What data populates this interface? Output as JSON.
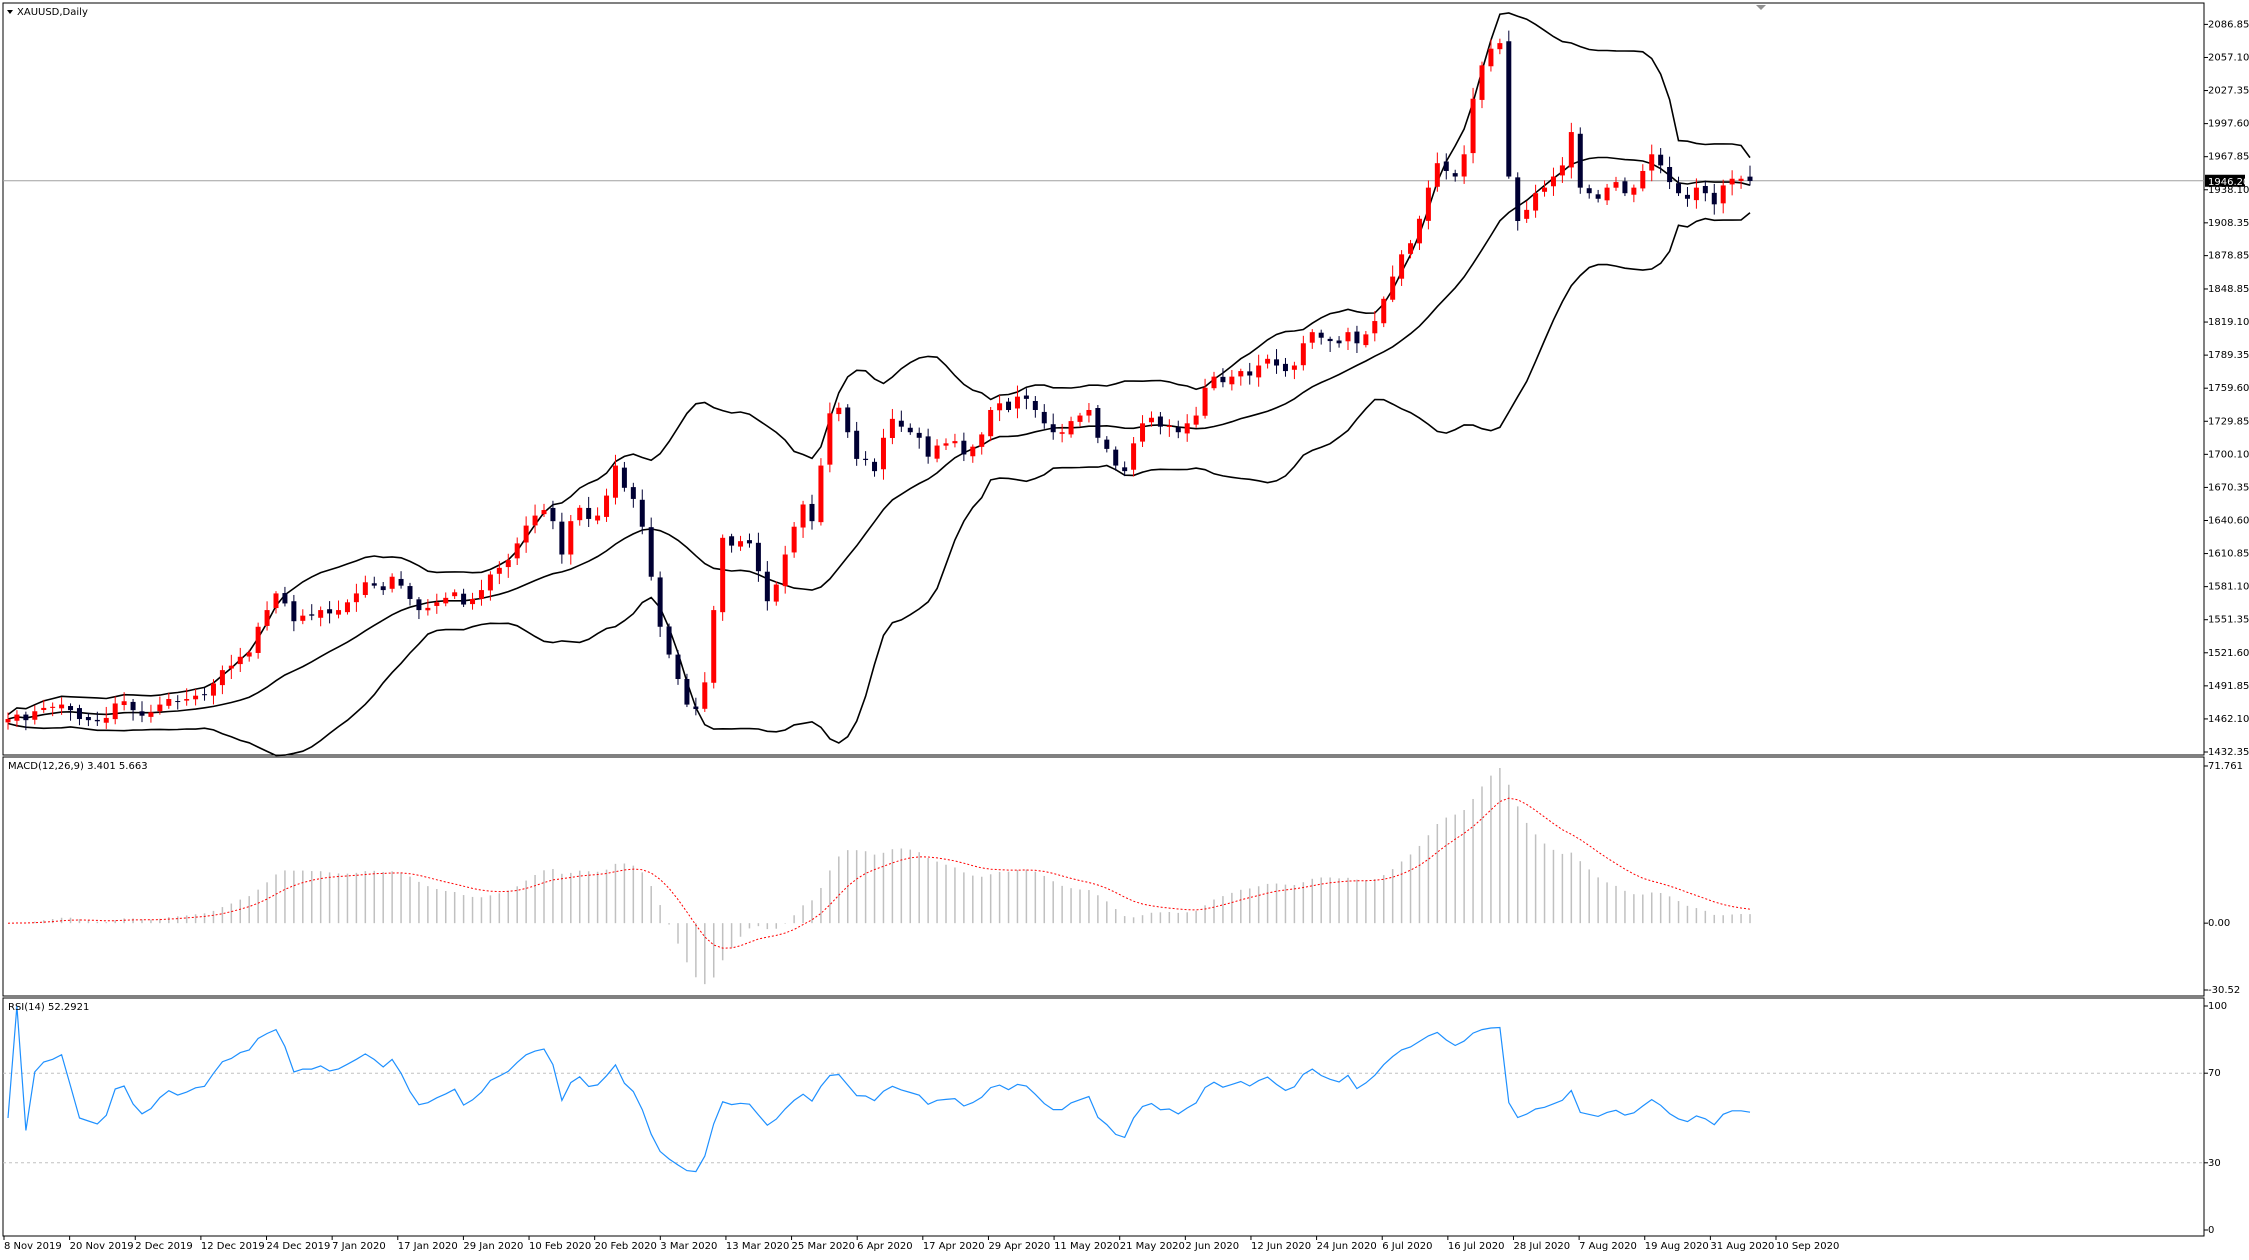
{
  "window": {
    "title": "XAUUSD,Daily",
    "title_icon": "triangle-down-icon",
    "shift_marker_icon": "triangle-down-icon"
  },
  "colors": {
    "bull": "#ff0000",
    "bear": "#000033",
    "band": "#000000",
    "macd_hist": "#c0c0c0",
    "macd_signal": "#ff0000",
    "rsi": "#1e90ff",
    "price_line": "#a0a0a0",
    "grid_level": "#c0c0c0"
  },
  "chart_data": [
    {
      "type": "candlestick",
      "title": "XAUUSD,Daily",
      "symbol": "XAUUSD",
      "timeframe": "Daily",
      "indicator": "Bollinger Bands (upper, middle, lower)",
      "y_ticks": [
        "2086.85",
        "2057.10",
        "2027.35",
        "1997.60",
        "1967.85",
        "1938.10",
        "1908.35",
        "1878.85",
        "1848.85",
        "1819.10",
        "1789.35",
        "1759.60",
        "1729.85",
        "1700.10",
        "1670.35",
        "1640.60",
        "1610.85",
        "1581.10",
        "1551.35",
        "1521.60",
        "1491.85",
        "1462.10",
        "1432.35"
      ],
      "ylim": [
        1432.35,
        2098
      ],
      "current_price_label": "1946.20",
      "current_price": 1946.2,
      "x_ticks": [
        "8 Nov 2019",
        "20 Nov 2019",
        "2 Dec 2019",
        "12 Dec 2019",
        "24 Dec 2019",
        "7 Jan 2020",
        "17 Jan 2020",
        "29 Jan 2020",
        "10 Feb 2020",
        "20 Feb 2020",
        "3 Mar 2020",
        "13 Mar 2020",
        "25 Mar 2020",
        "6 Apr 2020",
        "17 Apr 2020",
        "29 Apr 2020",
        "11 May 2020",
        "21 May 2020",
        "2 Jun 2020",
        "12 Jun 2020",
        "24 Jun 2020",
        "6 Jul 2020",
        "16 Jul 2020",
        "28 Jul 2020",
        "7 Aug 2020",
        "19 Aug 2020",
        "31 Aug 2020",
        "10 Sep 2020"
      ],
      "close_path": [
        1462,
        1466,
        1461,
        1469,
        1472,
        1473,
        1475,
        1470,
        1462,
        1461,
        1460,
        1463,
        1476,
        1478,
        1470,
        1465,
        1468,
        1475,
        1480,
        1478,
        1480,
        1483,
        1484,
        1494,
        1506,
        1510,
        1518,
        1522,
        1545,
        1560,
        1575,
        1566,
        1550,
        1555,
        1555,
        1560,
        1557,
        1560,
        1567,
        1575,
        1585,
        1582,
        1578,
        1590,
        1582,
        1570,
        1560,
        1562,
        1567,
        1571,
        1576,
        1565,
        1570,
        1578,
        1592,
        1598,
        1605,
        1620,
        1636,
        1645,
        1650,
        1640,
        1610,
        1640,
        1652,
        1642,
        1645,
        1663,
        1690,
        1670,
        1660,
        1635,
        1590,
        1545,
        1520,
        1498,
        1475,
        1471,
        1495,
        1560,
        1625,
        1618,
        1622,
        1620,
        1595,
        1568,
        1583,
        1610,
        1635,
        1655,
        1640,
        1690,
        1737,
        1742,
        1720,
        1696,
        1695,
        1685,
        1715,
        1732,
        1725,
        1720,
        1715,
        1698,
        1708,
        1710,
        1712,
        1700,
        1707,
        1718,
        1740,
        1746,
        1740,
        1752,
        1750,
        1740,
        1728,
        1720,
        1720,
        1730,
        1735,
        1740,
        1715,
        1705,
        1690,
        1685,
        1710,
        1728,
        1733,
        1725,
        1726,
        1720,
        1728,
        1735,
        1760,
        1770,
        1765,
        1770,
        1775,
        1771,
        1780,
        1786,
        1780,
        1775,
        1780,
        1800,
        1810,
        1805,
        1802,
        1800,
        1810,
        1800,
        1808,
        1820,
        1840,
        1860,
        1880,
        1890,
        1912,
        1940,
        1962,
        1955,
        1950,
        1970,
        2020,
        2050,
        2065,
        2070,
        1950,
        1910,
        1920,
        1935,
        1940,
        1950,
        1960,
        1990,
        1940,
        1935,
        1930,
        1940,
        1945,
        1935,
        1940,
        1955,
        1970,
        1960,
        1945,
        1935,
        1930,
        1940,
        1935,
        1925,
        1942,
        1948,
        1948,
        1946
      ]
    },
    {
      "type": "macd",
      "title": "MACD(12,26,9) 3.401 5.663",
      "params": "12,26,9",
      "macd_value": 3.401,
      "signal_value": 5.663,
      "y_ticks": [
        "71.761",
        "0.00",
        "-30.52"
      ],
      "ylim": [
        -30.52,
        71.761
      ]
    },
    {
      "type": "line",
      "title": "RSI(14) 52.2921",
      "period": 14,
      "current_value": 52.2921,
      "y_ticks": [
        "100",
        "70",
        "30",
        "0"
      ],
      "levels": [
        70,
        30
      ],
      "ylim": [
        0,
        100
      ]
    }
  ]
}
